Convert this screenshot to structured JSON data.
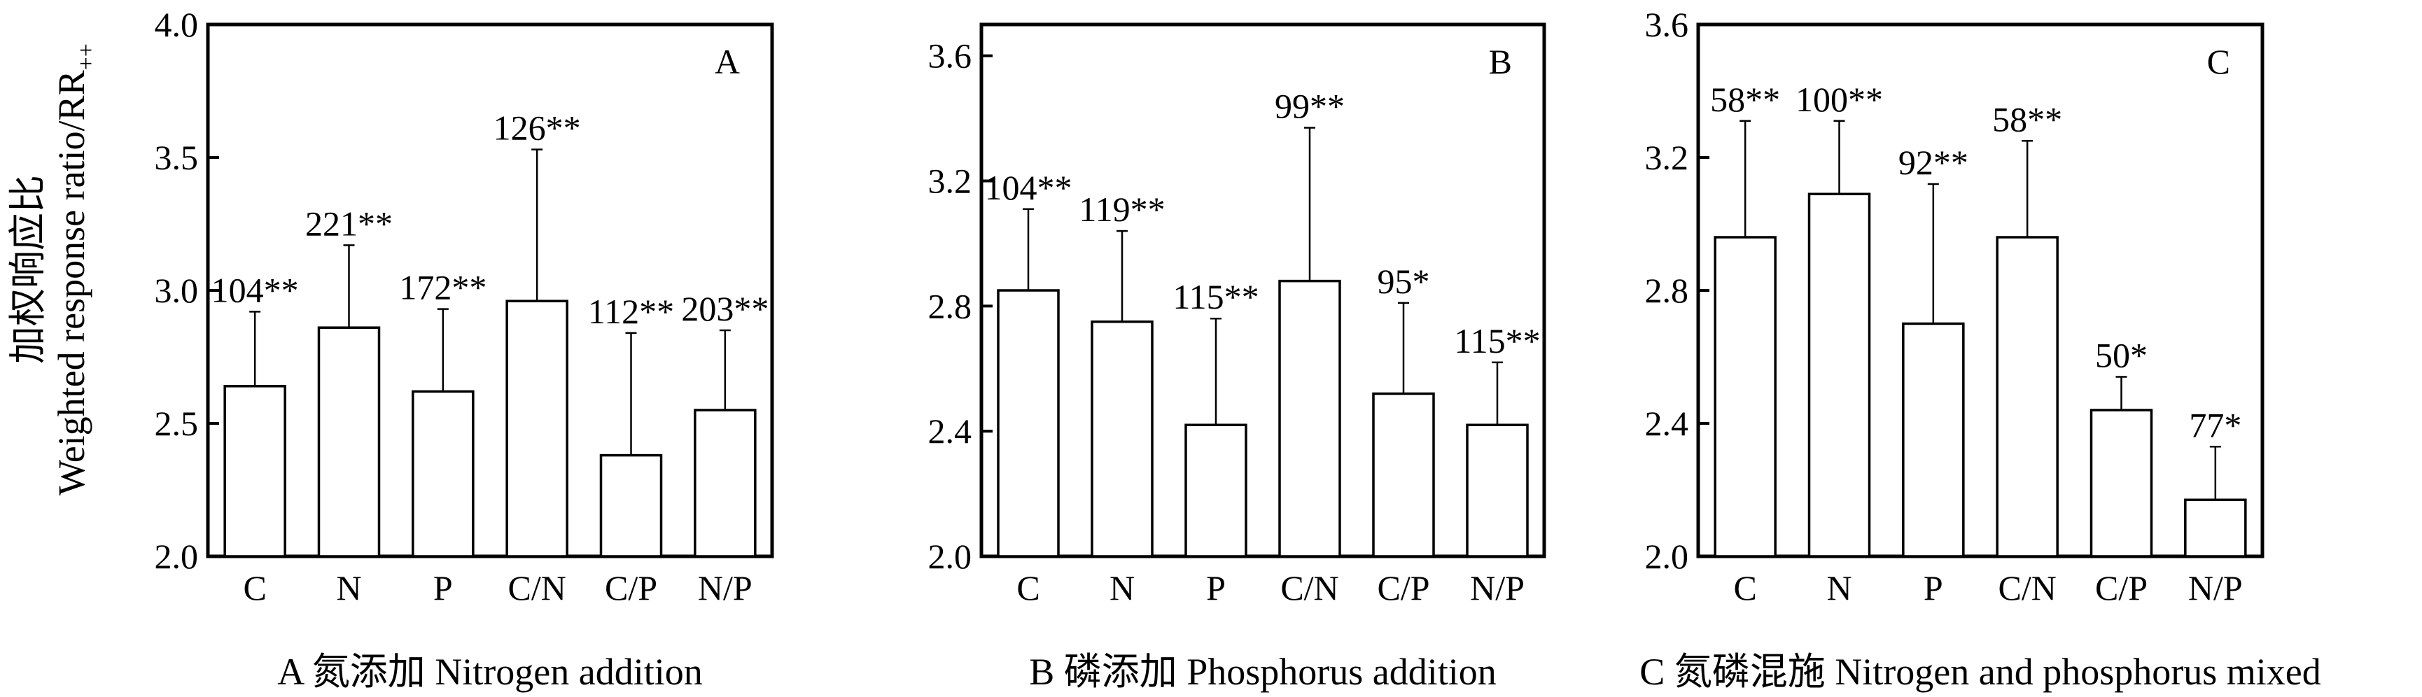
{
  "y_axis_label": {
    "line1": "加权响应比",
    "line2": "Weighted response ratio/RR",
    "subscript": "++"
  },
  "chart_data": [
    {
      "type": "bar",
      "panel": "A",
      "caption": "A 氮添加 Nitrogen addition",
      "categories": [
        "C",
        "N",
        "P",
        "C/N",
        "C/P",
        "N/P"
      ],
      "values": [
        2.64,
        2.86,
        2.62,
        2.96,
        2.38,
        2.55
      ],
      "error_upper": [
        2.92,
        3.17,
        2.93,
        3.53,
        2.84,
        2.85
      ],
      "bar_labels": [
        "104**",
        "221**",
        "172**",
        "126**",
        "112**",
        "203**"
      ],
      "ylim": [
        2.0,
        4.0
      ],
      "yticks": [
        "2.0",
        "2.5",
        "3.0",
        "3.5",
        "4.0"
      ],
      "xlabel": "",
      "ylabel": ""
    },
    {
      "type": "bar",
      "panel": "B",
      "caption": "B 磷添加 Phosphorus addition",
      "categories": [
        "C",
        "N",
        "P",
        "C/N",
        "C/P",
        "N/P"
      ],
      "values": [
        2.85,
        2.75,
        2.42,
        2.88,
        2.52,
        2.42
      ],
      "error_upper": [
        3.11,
        3.04,
        2.76,
        3.37,
        2.81,
        2.62
      ],
      "bar_labels": [
        "104**",
        "119**",
        "115**",
        "99**",
        "95*",
        "115**"
      ],
      "ylim": [
        2.0,
        3.7
      ],
      "yticks": [
        "2.0",
        "2.4",
        "2.8",
        "3.2",
        "3.6"
      ],
      "xlabel": "",
      "ylabel": ""
    },
    {
      "type": "bar",
      "panel": "C",
      "caption": "C 氮磷混施 Nitrogen and phosphorus mixed",
      "categories": [
        "C",
        "N",
        "P",
        "C/N",
        "C/P",
        "N/P"
      ],
      "values": [
        2.96,
        3.09,
        2.7,
        2.96,
        2.44,
        2.17
      ],
      "error_upper": [
        3.31,
        3.31,
        3.12,
        3.25,
        2.54,
        2.33
      ],
      "bar_labels": [
        "58**",
        "100**",
        "92**",
        "58**",
        "50*",
        "77*"
      ],
      "ylim": [
        2.0,
        3.6
      ],
      "yticks": [
        "2.0",
        "2.4",
        "2.8",
        "3.2",
        "3.6"
      ],
      "xlabel": "",
      "ylabel": ""
    }
  ]
}
